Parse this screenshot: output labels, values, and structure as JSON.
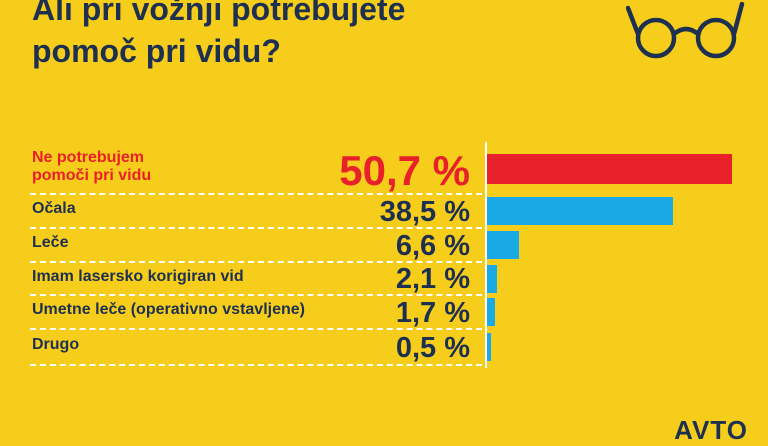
{
  "title_lines": [
    "Ali pri vožnji potrebujete",
    "pomoč pri vidu?"
  ],
  "icon": "glasses-icon",
  "colors": {
    "background": "#f7cd1c",
    "text": "#1e3050",
    "highlight": "#e8202a",
    "bar": "#19aae6"
  },
  "chart_data": {
    "type": "bar",
    "orientation": "horizontal",
    "title": "Ali pri vožnji potrebujete pomoč pri vidu?",
    "categories": [
      [
        "Ne potrebujem",
        "pomoči pri vidu"
      ],
      [
        "Očala"
      ],
      [
        "Leče"
      ],
      [
        "Imam lasersko korigiran vid"
      ],
      [
        "Umetne leče (operativno vstavljene)"
      ],
      [
        "Drugo"
      ]
    ],
    "values": [
      50.7,
      38.5,
      6.6,
      2.1,
      1.7,
      0.5
    ],
    "value_labels": [
      "50,7 %",
      "38,5 %",
      "6,6 %",
      "2,1 %",
      "1,7 %",
      "0,5 %"
    ],
    "highlight_index": 0,
    "unit": "%",
    "xlim": [
      0,
      52
    ]
  },
  "logo_text": "AVTO"
}
